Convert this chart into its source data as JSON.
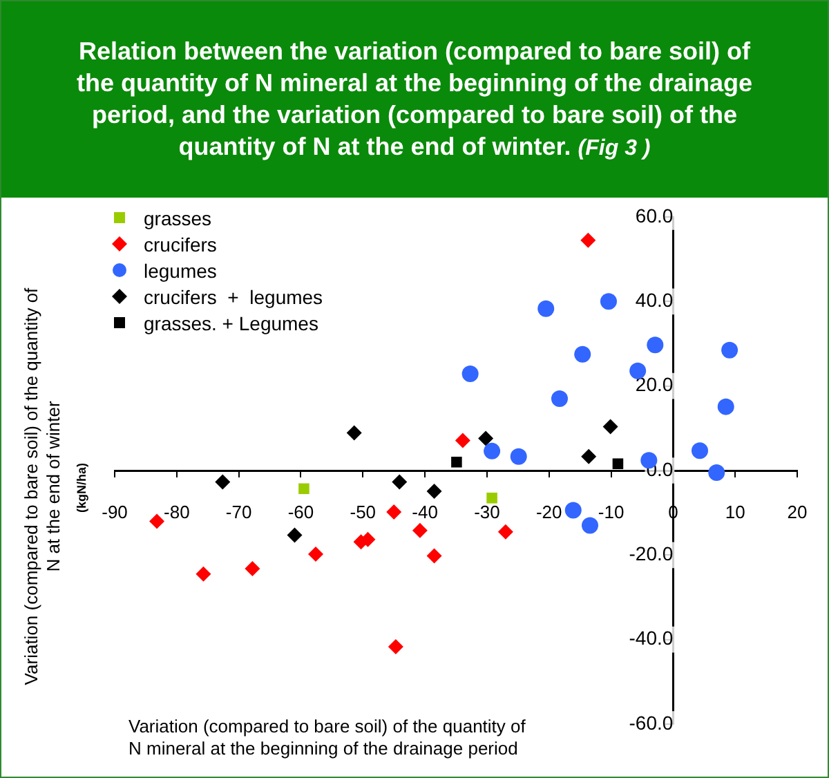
{
  "chart_data": {
    "type": "scatter",
    "title": "Relation between the variation (compared to bare soil) of the quantity of N mineral at the beginning of the drainage period, and the variation (compared to bare soil) of the quantity of N at the end of winter.",
    "subtitle": "(Fig 3 )",
    "xlabel": "Variation (compared to bare soil) of the quantity of N mineral at the beginning of the drainage period",
    "ylabel": "Variation (compared to bare soil) of the quantity of N at the end of winter",
    "annotations": [
      "(kgN/ha)"
    ],
    "xlim": [
      -90,
      20
    ],
    "xticks": [
      -90,
      -80,
      -70,
      -60,
      -50,
      -40,
      -30,
      -20,
      -10,
      0,
      10,
      20
    ],
    "ylim": [
      -60,
      60
    ],
    "yticks": [
      {
        "value": -60,
        "label": "-60.0"
      },
      {
        "value": -40,
        "label": "-40.0"
      },
      {
        "value": -20,
        "label": "-20.0"
      },
      {
        "value": 0,
        "label": "0.0"
      },
      {
        "value": 20,
        "label": "20.0"
      },
      {
        "value": 40,
        "label": "40.0"
      },
      {
        "value": 60,
        "label": "60.0"
      }
    ],
    "grid": false,
    "legend": "top left",
    "series": [
      {
        "name": "grasses",
        "color": "#99cc00",
        "marker": "square",
        "x": [
          -59.5,
          -29.2
        ],
        "values": [
          -4.3,
          -6.5
        ]
      },
      {
        "name": "crucifers",
        "color": "#ff0000",
        "marker": "diamond",
        "x": [
          -13.7,
          -33.9,
          -83.2,
          -75.7,
          -67.8,
          -57.6,
          -50.3,
          -49.2,
          -45.0,
          -40.8,
          -38.5,
          -44.7,
          -27.0
        ],
        "values": [
          54.5,
          7.1,
          -12.0,
          -24.5,
          -23.2,
          -19.8,
          -16.9,
          -16.3,
          -9.8,
          -14.2,
          -20.2,
          -41.7,
          -14.5
        ]
      },
      {
        "name": "legumes",
        "color": "#3366ff",
        "marker": "circle",
        "x": [
          -20.5,
          -10.4,
          -32.7,
          -14.6,
          -18.3,
          -5.7,
          -2.9,
          9.1,
          8.5,
          4.3,
          7.0,
          -3.9,
          -29.2,
          -24.9,
          -16.1,
          -13.4
        ],
        "values": [
          38.3,
          40.0,
          22.9,
          27.5,
          17.0,
          23.6,
          29.7,
          28.5,
          15.1,
          4.7,
          -0.5,
          2.4,
          4.6,
          3.3,
          -9.4,
          -13.0
        ]
      },
      {
        "name": "crucifers  +  legumes",
        "color": "#000000",
        "marker": "diamond",
        "x": [
          -51.4,
          -72.6,
          -44.1,
          -38.5,
          -61.0,
          -30.2,
          -10.1,
          -13.6
        ],
        "values": [
          8.9,
          -2.7,
          -2.7,
          -4.9,
          -15.3,
          7.6,
          10.4,
          3.3
        ]
      },
      {
        "name": "grasses. + Legumes",
        "color": "#000000",
        "marker": "square",
        "x": [
          -34.9,
          -8.9
        ],
        "values": [
          2.0,
          1.6
        ]
      }
    ]
  }
}
